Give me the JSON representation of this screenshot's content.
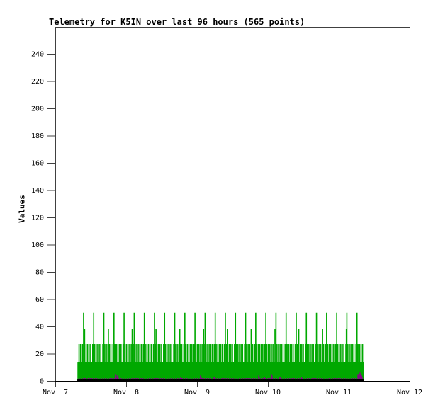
{
  "page": {
    "background_color": "#ffffff",
    "border_color": "#404040",
    "text_color": "#000000"
  },
  "chart_data": {
    "type": "impulse-bar",
    "title": "Telemetry for K5IN over last 96 hours (565 points)",
    "xlabel": "",
    "ylabel": "Values",
    "n_points": 565,
    "x_start_hour": 7.7,
    "x_end_hour": 104.4,
    "x_axis": {
      "tick_labels": [
        "Nov  7",
        "Nov  8",
        "Nov  9",
        "Nov 10",
        "Nov 11",
        "Nov 12"
      ],
      "tick_hours": [
        0,
        24,
        48,
        72,
        96,
        120
      ],
      "hours_per_day": 24
    },
    "y_axis": {
      "ticks": [
        0,
        20,
        40,
        60,
        80,
        100,
        120,
        140,
        160,
        180,
        200,
        220,
        240
      ],
      "range": [
        0,
        260
      ]
    },
    "grid": false,
    "legend": null,
    "series": [
      {
        "name": "telemetry-channel-green",
        "color": "#00A800",
        "style": "impulses",
        "value_cycle": [
          14,
          14,
          27,
          14,
          14,
          27,
          14,
          14,
          14,
          27,
          14,
          50,
          14,
          27,
          14,
          14,
          27,
          14,
          14,
          27
        ],
        "accent": {
          "every": 47,
          "offset": 13,
          "value": 38
        }
      },
      {
        "name": "telemetry-channel-purple",
        "color": "#8B008B",
        "style": "impulses",
        "value_cycle": [
          1,
          1,
          2,
          1,
          1,
          1,
          1,
          2,
          1,
          1,
          1,
          2,
          1
        ],
        "spikes": [
          {
            "hour": 10.0,
            "value": 2
          },
          {
            "hour": 20.4,
            "value": 5
          },
          {
            "hour": 21.1,
            "value": 4
          },
          {
            "hour": 42.5,
            "value": 3
          },
          {
            "hour": 49.2,
            "value": 4
          },
          {
            "hour": 53.8,
            "value": 3
          },
          {
            "hour": 68.9,
            "value": 4
          },
          {
            "hour": 70.8,
            "value": 3
          },
          {
            "hour": 73.2,
            "value": 5
          },
          {
            "hour": 76.1,
            "value": 3
          },
          {
            "hour": 83.3,
            "value": 3
          },
          {
            "hour": 102.5,
            "value": 5
          },
          {
            "hour": 103.2,
            "value": 6
          },
          {
            "hour": 103.7,
            "value": 4
          }
        ]
      },
      {
        "name": "telemetry-channel-black",
        "color": "#000000",
        "style": "impulses",
        "constant_value": 1.5
      }
    ]
  }
}
